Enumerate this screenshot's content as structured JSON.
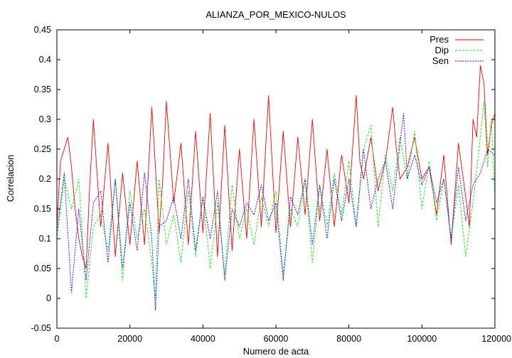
{
  "chart_data": {
    "type": "line",
    "title": "ALIANZA_POR_MEXICO-NULOS",
    "xlabel": "Numero de acta",
    "ylabel": "Correlacion",
    "xlim": [
      0,
      120000
    ],
    "ylim": [
      -0.05,
      0.45
    ],
    "x_ticks": [
      0,
      20000,
      40000,
      60000,
      80000,
      100000,
      120000
    ],
    "y_ticks": [
      -0.05,
      0,
      0.05,
      0.1,
      0.15,
      0.2,
      0.25,
      0.3,
      0.35,
      0.4,
      0.45
    ],
    "grid": false,
    "legend_position": "top-right",
    "series": [
      {
        "name": "Pres",
        "color": "#ff0000",
        "dash": "solid",
        "x": [
          0,
          1000,
          2000,
          3000,
          4000,
          5000,
          6000,
          7000,
          8000,
          9000,
          10000,
          12000,
          14000,
          16000,
          18000,
          20000,
          22000,
          24000,
          26000,
          27000,
          28000,
          29000,
          30000,
          32000,
          34000,
          36000,
          38000,
          40000,
          42000,
          44000,
          46000,
          48000,
          50000,
          52000,
          54000,
          56000,
          58000,
          60000,
          62000,
          64000,
          66000,
          68000,
          70000,
          72000,
          74000,
          76000,
          78000,
          80000,
          82000,
          83000,
          84000,
          86000,
          88000,
          90000,
          92000,
          93000,
          94000,
          96000,
          98000,
          100000,
          102000,
          104000,
          106000,
          108000,
          110000,
          112000,
          113000,
          114000,
          115000,
          116000,
          117000,
          118000,
          119000,
          120000
        ],
        "y": [
          0.12,
          0.23,
          0.25,
          0.27,
          0.22,
          0.15,
          0.1,
          0.07,
          0.05,
          0.19,
          0.3,
          0.12,
          0.26,
          0.07,
          0.21,
          0.09,
          0.23,
          0.09,
          0.32,
          0.22,
          0.11,
          0.2,
          0.33,
          0.16,
          0.26,
          0.09,
          0.28,
          0.11,
          0.31,
          0.07,
          0.29,
          0.08,
          0.25,
          0.1,
          0.3,
          0.12,
          0.34,
          0.11,
          0.28,
          0.12,
          0.27,
          0.14,
          0.3,
          0.13,
          0.25,
          0.12,
          0.24,
          0.16,
          0.34,
          0.23,
          0.2,
          0.27,
          0.18,
          0.23,
          0.32,
          0.25,
          0.2,
          0.22,
          0.27,
          0.2,
          0.22,
          0.14,
          0.24,
          0.09,
          0.26,
          0.17,
          0.12,
          0.3,
          0.27,
          0.39,
          0.36,
          0.24,
          0.29,
          0.31
        ]
      },
      {
        "name": "Dip",
        "color": "#00ee00",
        "dash": "dashed",
        "x": [
          0,
          2000,
          4000,
          6000,
          8000,
          10000,
          12000,
          14000,
          16000,
          18000,
          20000,
          22000,
          24000,
          26000,
          27000,
          28000,
          30000,
          32000,
          34000,
          36000,
          38000,
          40000,
          42000,
          44000,
          46000,
          48000,
          50000,
          52000,
          54000,
          56000,
          58000,
          60000,
          62000,
          64000,
          66000,
          68000,
          70000,
          72000,
          74000,
          76000,
          78000,
          80000,
          82000,
          84000,
          86000,
          88000,
          90000,
          92000,
          94000,
          96000,
          98000,
          100000,
          102000,
          104000,
          106000,
          108000,
          110000,
          112000,
          114000,
          116000,
          117000,
          118000,
          119000,
          120000
        ],
        "y": [
          0.1,
          0.2,
          0.15,
          0.2,
          0.0,
          0.12,
          0.14,
          0.08,
          0.2,
          0.03,
          0.18,
          0.1,
          0.15,
          0.06,
          0.0,
          0.2,
          0.09,
          0.14,
          0.06,
          0.18,
          0.07,
          0.17,
          0.05,
          0.16,
          0.04,
          0.19,
          0.1,
          0.15,
          0.09,
          0.17,
          0.12,
          0.18,
          0.04,
          0.15,
          0.12,
          0.2,
          0.06,
          0.19,
          0.12,
          0.21,
          0.14,
          0.23,
          0.12,
          0.25,
          0.29,
          0.12,
          0.24,
          0.18,
          0.27,
          0.2,
          0.28,
          0.15,
          0.23,
          0.13,
          0.2,
          0.1,
          0.19,
          0.07,
          0.16,
          0.27,
          0.33,
          0.22,
          0.3,
          0.17
        ]
      },
      {
        "name": "Sen",
        "color": "#0000ff",
        "dash": "dotted",
        "x": [
          0,
          2000,
          4000,
          6000,
          8000,
          10000,
          12000,
          14000,
          16000,
          18000,
          20000,
          22000,
          24000,
          26000,
          27000,
          28000,
          30000,
          32000,
          34000,
          36000,
          38000,
          40000,
          42000,
          44000,
          46000,
          48000,
          50000,
          52000,
          54000,
          56000,
          58000,
          60000,
          62000,
          64000,
          66000,
          68000,
          70000,
          72000,
          74000,
          76000,
          78000,
          80000,
          82000,
          84000,
          86000,
          88000,
          90000,
          92000,
          94000,
          95000,
          96000,
          98000,
          100000,
          102000,
          104000,
          106000,
          108000,
          110000,
          112000,
          114000,
          116000,
          118000,
          120000
        ],
        "y": [
          0.11,
          0.21,
          0.01,
          0.15,
          0.03,
          0.16,
          0.18,
          0.06,
          0.2,
          0.05,
          0.16,
          0.08,
          0.21,
          0.1,
          -0.02,
          0.12,
          0.13,
          0.17,
          0.1,
          0.2,
          0.08,
          0.17,
          0.1,
          0.18,
          0.03,
          0.15,
          0.12,
          0.16,
          0.14,
          0.19,
          0.13,
          0.16,
          0.03,
          0.17,
          0.14,
          0.2,
          0.09,
          0.19,
          0.1,
          0.2,
          0.13,
          0.2,
          0.12,
          0.25,
          0.15,
          0.2,
          0.23,
          0.15,
          0.26,
          0.31,
          0.2,
          0.24,
          0.19,
          0.22,
          0.16,
          0.2,
          0.1,
          0.22,
          0.13,
          0.19,
          0.21,
          0.25,
          0.24
        ]
      }
    ]
  }
}
